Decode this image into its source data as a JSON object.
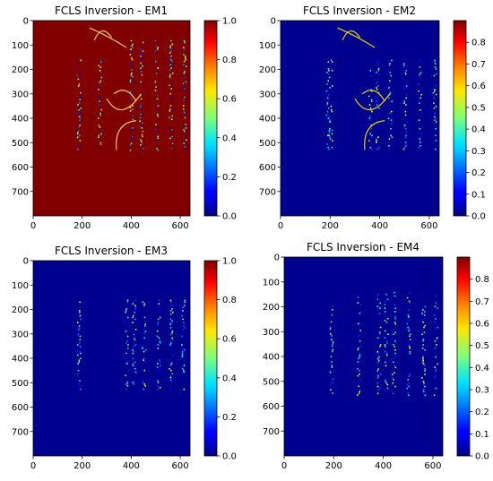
{
  "chart_data": [
    {
      "type": "heatmap",
      "title": "FCLS Inversion - EM1",
      "background_color": "#800000",
      "x_ticks": [
        0,
        200,
        400,
        600
      ],
      "y_ticks": [
        0,
        100,
        200,
        300,
        400,
        500,
        600,
        700
      ],
      "xlim": [
        0,
        640
      ],
      "ylim": [
        800,
        0
      ],
      "colorbar": {
        "min": 0.0,
        "max": 1.0,
        "ticks": [
          "0.0",
          "0.2",
          "0.4",
          "0.6",
          "0.8",
          "1.0"
        ]
      }
    },
    {
      "type": "heatmap",
      "title": "FCLS Inversion - EM2",
      "background_color": "#00008f",
      "x_ticks": [
        0,
        200,
        400,
        600
      ],
      "y_ticks": [
        0,
        100,
        200,
        300,
        400,
        500,
        600,
        700
      ],
      "xlim": [
        0,
        640
      ],
      "ylim": [
        800,
        0
      ],
      "colorbar": {
        "min": 0.0,
        "max": 0.9,
        "ticks": [
          "0.0",
          "0.1",
          "0.2",
          "0.3",
          "0.4",
          "0.5",
          "0.6",
          "0.7",
          "0.8"
        ]
      }
    },
    {
      "type": "heatmap",
      "title": "FCLS Inversion - EM3",
      "background_color": "#00008f",
      "x_ticks": [
        0,
        200,
        400,
        600
      ],
      "y_ticks": [
        0,
        100,
        200,
        300,
        400,
        500,
        600,
        700
      ],
      "xlim": [
        0,
        640
      ],
      "ylim": [
        800,
        0
      ],
      "colorbar": {
        "min": 0.0,
        "max": 1.0,
        "ticks": [
          "0.0",
          "0.2",
          "0.4",
          "0.6",
          "0.8",
          "1.0"
        ]
      }
    },
    {
      "type": "heatmap",
      "title": "FCLS Inversion - EM4",
      "background_color": "#00008f",
      "x_ticks": [
        0,
        200,
        400,
        600
      ],
      "y_ticks": [
        0,
        100,
        200,
        300,
        400,
        500,
        600,
        700
      ],
      "xlim": [
        0,
        640
      ],
      "ylim": [
        800,
        0
      ],
      "colorbar": {
        "min": 0.0,
        "max": 0.9,
        "ticks": [
          "0.0",
          "0.1",
          "0.2",
          "0.3",
          "0.4",
          "0.5",
          "0.6",
          "0.7",
          "0.8"
        ]
      }
    }
  ]
}
